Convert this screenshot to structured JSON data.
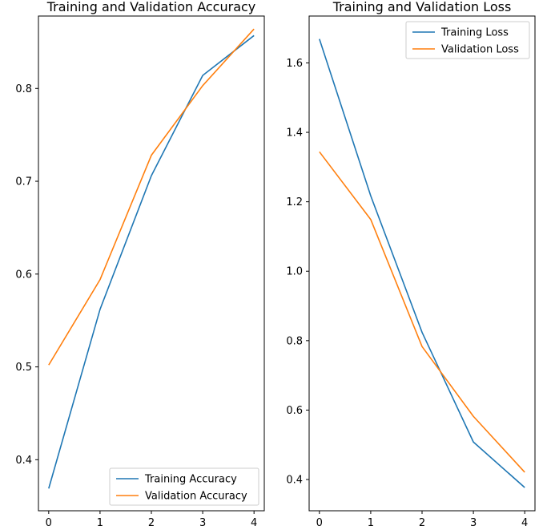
{
  "chart_data": [
    {
      "type": "line",
      "title": "Training and Validation Accuracy",
      "xlabel": "",
      "ylabel": "",
      "x": [
        0,
        1,
        2,
        3,
        4
      ],
      "xlim": [
        -0.2,
        4.2
      ],
      "ylim": [
        0.345,
        0.878
      ],
      "xticks": [
        0,
        1,
        2,
        3,
        4
      ],
      "yticks": [
        0.4,
        0.5,
        0.6,
        0.7,
        0.8
      ],
      "grid": false,
      "legend_position": "lower-right",
      "series": [
        {
          "name": "Training Accuracy",
          "color": "#1f77b4",
          "values": [
            0.369,
            0.562,
            0.706,
            0.814,
            0.857
          ]
        },
        {
          "name": "Validation Accuracy",
          "color": "#ff7f0e",
          "values": [
            0.502,
            0.594,
            0.728,
            0.803,
            0.864
          ]
        }
      ]
    },
    {
      "type": "line",
      "title": "Training and Validation Loss",
      "xlabel": "",
      "ylabel": "",
      "x": [
        0,
        1,
        2,
        3,
        4
      ],
      "xlim": [
        -0.2,
        4.2
      ],
      "ylim": [
        0.31,
        1.735
      ],
      "xticks": [
        0,
        1,
        2,
        3,
        4
      ],
      "yticks": [
        0.4,
        0.6,
        0.8,
        1.0,
        1.2,
        1.4,
        1.6
      ],
      "grid": false,
      "legend_position": "upper-right",
      "series": [
        {
          "name": "Training Loss",
          "color": "#1f77b4",
          "values": [
            1.669,
            1.217,
            0.824,
            0.508,
            0.377
          ]
        },
        {
          "name": "Validation Loss",
          "color": "#ff7f0e",
          "values": [
            1.344,
            1.149,
            0.783,
            0.582,
            0.421
          ]
        }
      ]
    }
  ]
}
